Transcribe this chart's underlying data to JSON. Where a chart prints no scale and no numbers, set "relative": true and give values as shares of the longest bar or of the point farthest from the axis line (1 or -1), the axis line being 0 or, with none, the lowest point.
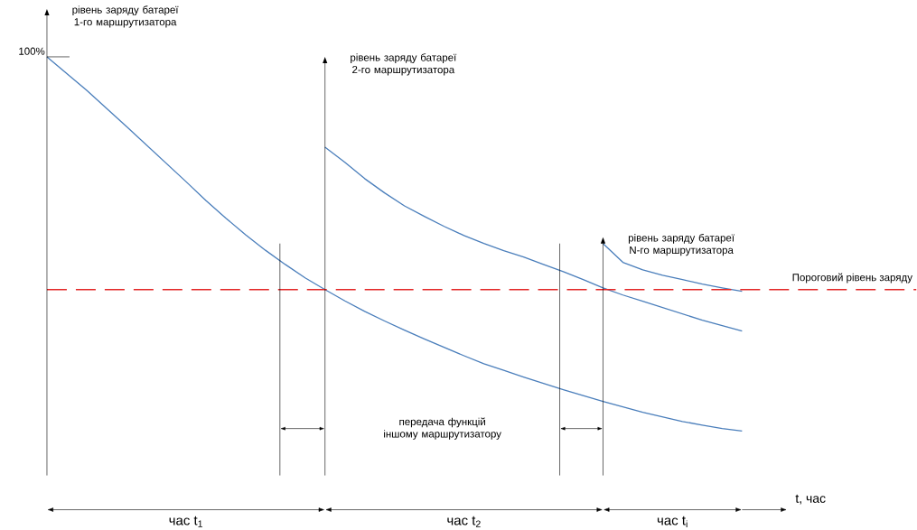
{
  "chart_data": {
    "type": "line",
    "relative": true,
    "xlabel": "t, час",
    "categories": [
      null,
      null,
      null,
      null,
      null,
      null,
      null,
      null,
      null,
      null,
      null,
      null,
      null,
      null,
      null,
      null,
      null,
      null,
      null,
      null,
      null,
      null,
      null,
      null,
      null,
      null,
      null,
      null,
      null,
      null,
      null,
      null,
      null,
      null,
      null,
      null
    ],
    "series": [
      {
        "color": "#4a7ebb",
        "values": [
          1.0,
          0.96,
          0.92,
          0.877,
          0.834,
          0.79,
          0.746,
          0.702,
          0.657,
          0.615,
          0.575,
          0.538,
          0.504,
          0.472,
          0.444,
          0.417,
          0.392,
          0.369,
          0.347,
          0.326,
          0.306,
          0.286,
          0.267,
          0.251,
          0.235,
          0.22,
          0.205,
          0.191,
          0.177,
          0.164,
          0.151,
          0.14,
          0.129,
          0.12,
          0.112,
          0.106
        ]
      },
      {
        "color": "#4a7ebb",
        "values": [
          null,
          null,
          null,
          null,
          null,
          null,
          null,
          null,
          null,
          null,
          null,
          null,
          null,
          null,
          0.784,
          0.748,
          0.709,
          0.675,
          0.644,
          0.619,
          0.595,
          0.573,
          0.554,
          0.537,
          0.522,
          0.504,
          0.487,
          0.468,
          0.448,
          0.431,
          0.416,
          0.401,
          0.386,
          0.371,
          0.358,
          0.345
        ]
      },
      {
        "color": "#4a7ebb",
        "values": [
          null,
          null,
          null,
          null,
          null,
          null,
          null,
          null,
          null,
          null,
          null,
          null,
          null,
          null,
          null,
          null,
          null,
          null,
          null,
          null,
          null,
          null,
          null,
          null,
          null,
          null,
          null,
          null,
          0.554,
          0.509,
          0.491,
          0.478,
          0.468,
          0.457,
          0.448,
          0.44
        ]
      }
    ],
    "ref_lines": [
      {
        "axis": "y",
        "value": 0.444,
        "label": "Пороговий рівень заряду",
        "color": "#e32626",
        "line_style": "dashed"
      }
    ],
    "annotations": [
      "100%",
      "передача функцій іншому маршрутизатору",
      "час t$_{1}$",
      "час t$_{2}$",
      "час t$_{i}$",
      "рівень заряду батареї 1-го маршрутизатора",
      "рівень заряду батареї 2-го маршрутизатора",
      "рівень заряду батареї N-го маршрутизатора"
    ]
  }
}
